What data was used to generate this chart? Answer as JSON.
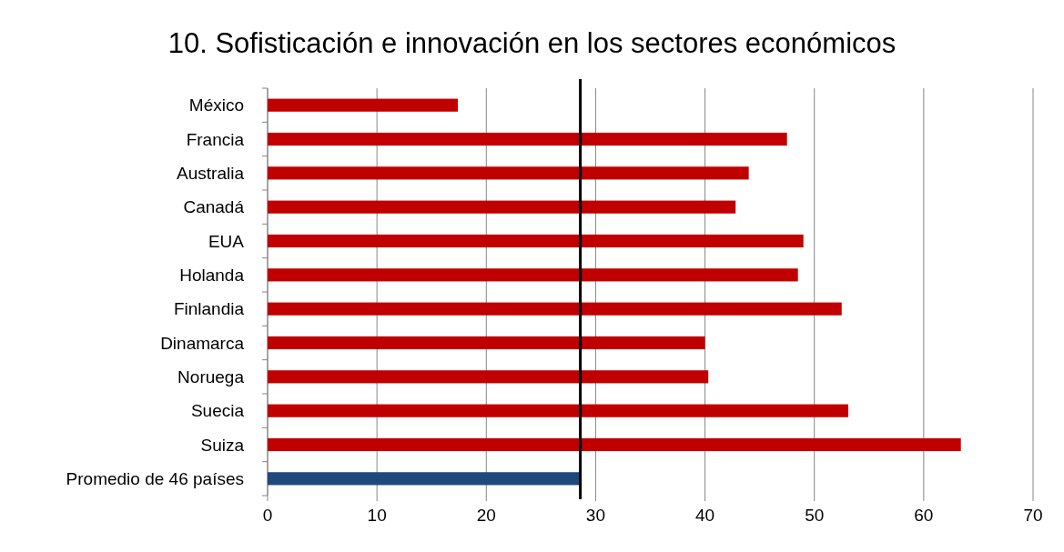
{
  "chart_data": {
    "type": "bar",
    "orientation": "horizontal",
    "title": "10. Sofisticación e innovación en los sectores económicos",
    "categories": [
      "México",
      "Francia",
      "Australia",
      "Canadá",
      "EUA",
      "Holanda",
      "Finlandia",
      "Dinamarca",
      "Noruega",
      "Suecia",
      "Suiza",
      "Promedio de 46 países"
    ],
    "values": [
      17.4,
      47.5,
      44.0,
      42.8,
      49.0,
      48.5,
      52.5,
      40.0,
      40.3,
      53.1,
      63.4,
      28.6
    ],
    "colors": [
      "#c00000",
      "#c00000",
      "#c00000",
      "#c00000",
      "#c00000",
      "#c00000",
      "#c00000",
      "#c00000",
      "#c00000",
      "#c00000",
      "#c00000",
      "#1f497d"
    ],
    "xlim": [
      0,
      70
    ],
    "xticks": [
      0,
      10,
      20,
      30,
      40,
      50,
      60,
      70
    ],
    "grid": "x",
    "ref_lines": [
      {
        "axis": "x",
        "value": 28.6,
        "color": "#000000"
      }
    ]
  }
}
